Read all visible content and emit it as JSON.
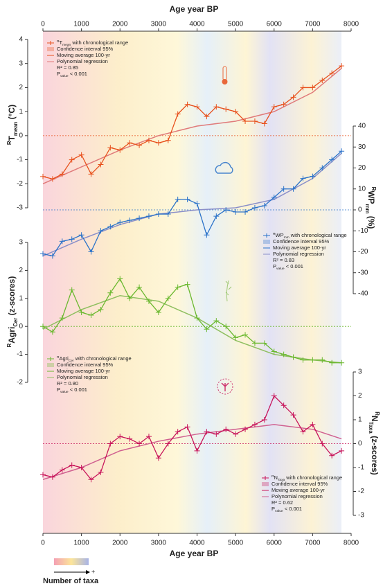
{
  "chart_data": {
    "type": "line",
    "xlabel": "Age year BP",
    "xlim": [
      0,
      8000
    ],
    "xticks": [
      0,
      1000,
      2000,
      3000,
      4000,
      5000,
      6000,
      7000,
      8000
    ],
    "x": [
      0,
      250,
      500,
      750,
      1000,
      1250,
      1500,
      1750,
      2000,
      2250,
      2500,
      2750,
      3000,
      3250,
      3500,
      3750,
      4000,
      4250,
      4500,
      4750,
      5000,
      5250,
      5500,
      5750,
      6000,
      6250,
      6500,
      6750,
      7000,
      7250,
      7500,
      7750
    ],
    "taxa_legend": {
      "label": "Number of taxa",
      "high": "+"
    },
    "panels": [
      {
        "ylabel": {
          "sup": "R",
          "main": "T",
          "sub": "mean",
          "unit": " (°C)"
        },
        "ylim": [
          -3,
          4
        ],
        "yticks": [
          -3,
          -2,
          -1,
          0,
          1,
          2,
          3,
          4
        ],
        "range_entry": {
          "sup": "R",
          "main": "T",
          "sub": "mean",
          "rest": " with chronological range"
        },
        "ci_entry": "Confidence interval 95%",
        "r2": "R² = 0.85",
        "p": {
          "main": "P",
          "sub": "value",
          "rest": " < 0.001"
        },
        "series": [
          {
            "name": "Moving average 100-yr",
            "color": "#e8501c",
            "values": [
              -1.7,
              -1.8,
              -1.6,
              -1.0,
              -0.8,
              -1.6,
              -1.2,
              -0.5,
              -0.6,
              -0.3,
              -0.4,
              -0.2,
              -0.3,
              -0.2,
              0.9,
              1.3,
              1.2,
              0.8,
              1.2,
              1.1,
              1.0,
              0.6,
              0.6,
              0.5,
              1.2,
              1.3,
              1.6,
              2.0,
              2.0,
              2.3,
              2.6,
              2.9
            ]
          },
          {
            "name": "Polynomial regression",
            "color": "#e07a7a",
            "x": [
              0,
              1000,
              2000,
              3000,
              4000,
              5000,
              6000,
              7000,
              7750
            ],
            "values": [
              -2.0,
              -1.3,
              -0.6,
              0.0,
              0.4,
              0.6,
              1.0,
              1.8,
              2.8
            ]
          }
        ]
      },
      {
        "ylabel": {
          "sup": "R",
          "main": "WP",
          "sub": "mm",
          "unit": " (%)"
        },
        "ylim": [
          -40,
          40
        ],
        "yticks": [
          -40,
          -30,
          -20,
          -10,
          0,
          10,
          20,
          30,
          40
        ],
        "range_entry": {
          "sup": "R",
          "main": "WP",
          "sub": "mm",
          "rest": " with chronological range"
        },
        "ci_entry": "Confidence interval 95%",
        "r2": "R² = 0.83",
        "p": {
          "main": "P",
          "sub": "value",
          "rest": " < 0.001"
        },
        "series": [
          {
            "name": "Moving average 100-yr",
            "color": "#2a72c9",
            "values": [
              -21,
              -22,
              -15,
              -14,
              -12,
              -20,
              -10,
              -8,
              -6,
              -5,
              -4,
              -3,
              -2,
              -2,
              5,
              5,
              3,
              -12,
              -3,
              0,
              -1,
              -1,
              1,
              2,
              6,
              10,
              10,
              15,
              16,
              20,
              24,
              28
            ]
          },
          {
            "name": "Polynomial regression",
            "color": "#8a8fc9",
            "x": [
              0,
              1000,
              2000,
              3000,
              4000,
              5000,
              6000,
              7000,
              7750
            ],
            "values": [
              -22,
              -14,
              -7,
              -2,
              0,
              1,
              5,
              15,
              27
            ]
          }
        ]
      },
      {
        "ylabel": {
          "sup": "R",
          "main": "Agri",
          "sub": "Cer",
          "unit": " (z-scores)"
        },
        "ylim": [
          -2,
          3
        ],
        "yticks": [
          -2,
          -1,
          0,
          1,
          2,
          3
        ],
        "range_entry": {
          "sup": "R",
          "main": "Agri",
          "sub": "Cer",
          "rest": " with chronological range"
        },
        "ci_entry": "Confidence interval 95%",
        "r2": "R² = 0.80",
        "p": {
          "main": "P",
          "sub": "value",
          "rest": " < 0.001"
        },
        "series": [
          {
            "name": "Moving average 100-yr",
            "color": "#6ab82e",
            "values": [
              0.0,
              -0.2,
              0.3,
              1.3,
              0.5,
              0.4,
              0.6,
              1.2,
              1.7,
              1.0,
              1.4,
              0.9,
              0.5,
              1.0,
              1.4,
              1.5,
              0.3,
              -0.1,
              0.2,
              0.0,
              -0.4,
              -0.3,
              -0.6,
              -0.6,
              -0.9,
              -1.0,
              -1.1,
              -1.2,
              -1.2,
              -1.2,
              -1.3,
              -1.3
            ]
          },
          {
            "name": "Polynomial regression",
            "color": "#8fbf60",
            "x": [
              0,
              1000,
              2000,
              3000,
              4000,
              5000,
              6000,
              7000,
              7750
            ],
            "values": [
              -0.1,
              0.6,
              1.1,
              0.9,
              0.3,
              -0.5,
              -1.0,
              -1.2,
              -1.3
            ]
          }
        ]
      },
      {
        "ylabel": {
          "sup": "R",
          "main": "N",
          "sub": "Taxa",
          "unit": " (z-scores)"
        },
        "ylim": [
          -3,
          3
        ],
        "yticks": [
          -3,
          -2,
          -1,
          0,
          1,
          2,
          3
        ],
        "range_entry": {
          "sup": "R",
          "main": "N",
          "sub": "Taxa",
          "rest": " with chronological range"
        },
        "ci_entry": "Confidence interval 95%",
        "r2": "R² = 0.62",
        "p": {
          "main": "P",
          "sub": "value",
          "rest": " < 0.001"
        },
        "series": [
          {
            "name": "Moving average 100-yr",
            "color": "#c8145a",
            "values": [
              -1.3,
              -1.4,
              -1.1,
              -0.9,
              -1.0,
              -1.5,
              -1.2,
              0.0,
              0.3,
              0.2,
              0.0,
              0.3,
              -0.6,
              0.0,
              0.5,
              0.7,
              -0.3,
              0.5,
              0.4,
              0.6,
              0.4,
              0.6,
              0.8,
              1.0,
              2.0,
              1.6,
              1.2,
              0.5,
              0.8,
              0.0,
              -0.5,
              -0.3
            ]
          },
          {
            "name": "Polynomial regression",
            "color": "#d06090",
            "x": [
              0,
              1000,
              2000,
              3000,
              4000,
              5000,
              6000,
              7000,
              7750
            ],
            "values": [
              -1.5,
              -1.0,
              -0.3,
              0.1,
              0.4,
              0.6,
              0.8,
              0.6,
              0.2
            ]
          }
        ]
      }
    ]
  }
}
